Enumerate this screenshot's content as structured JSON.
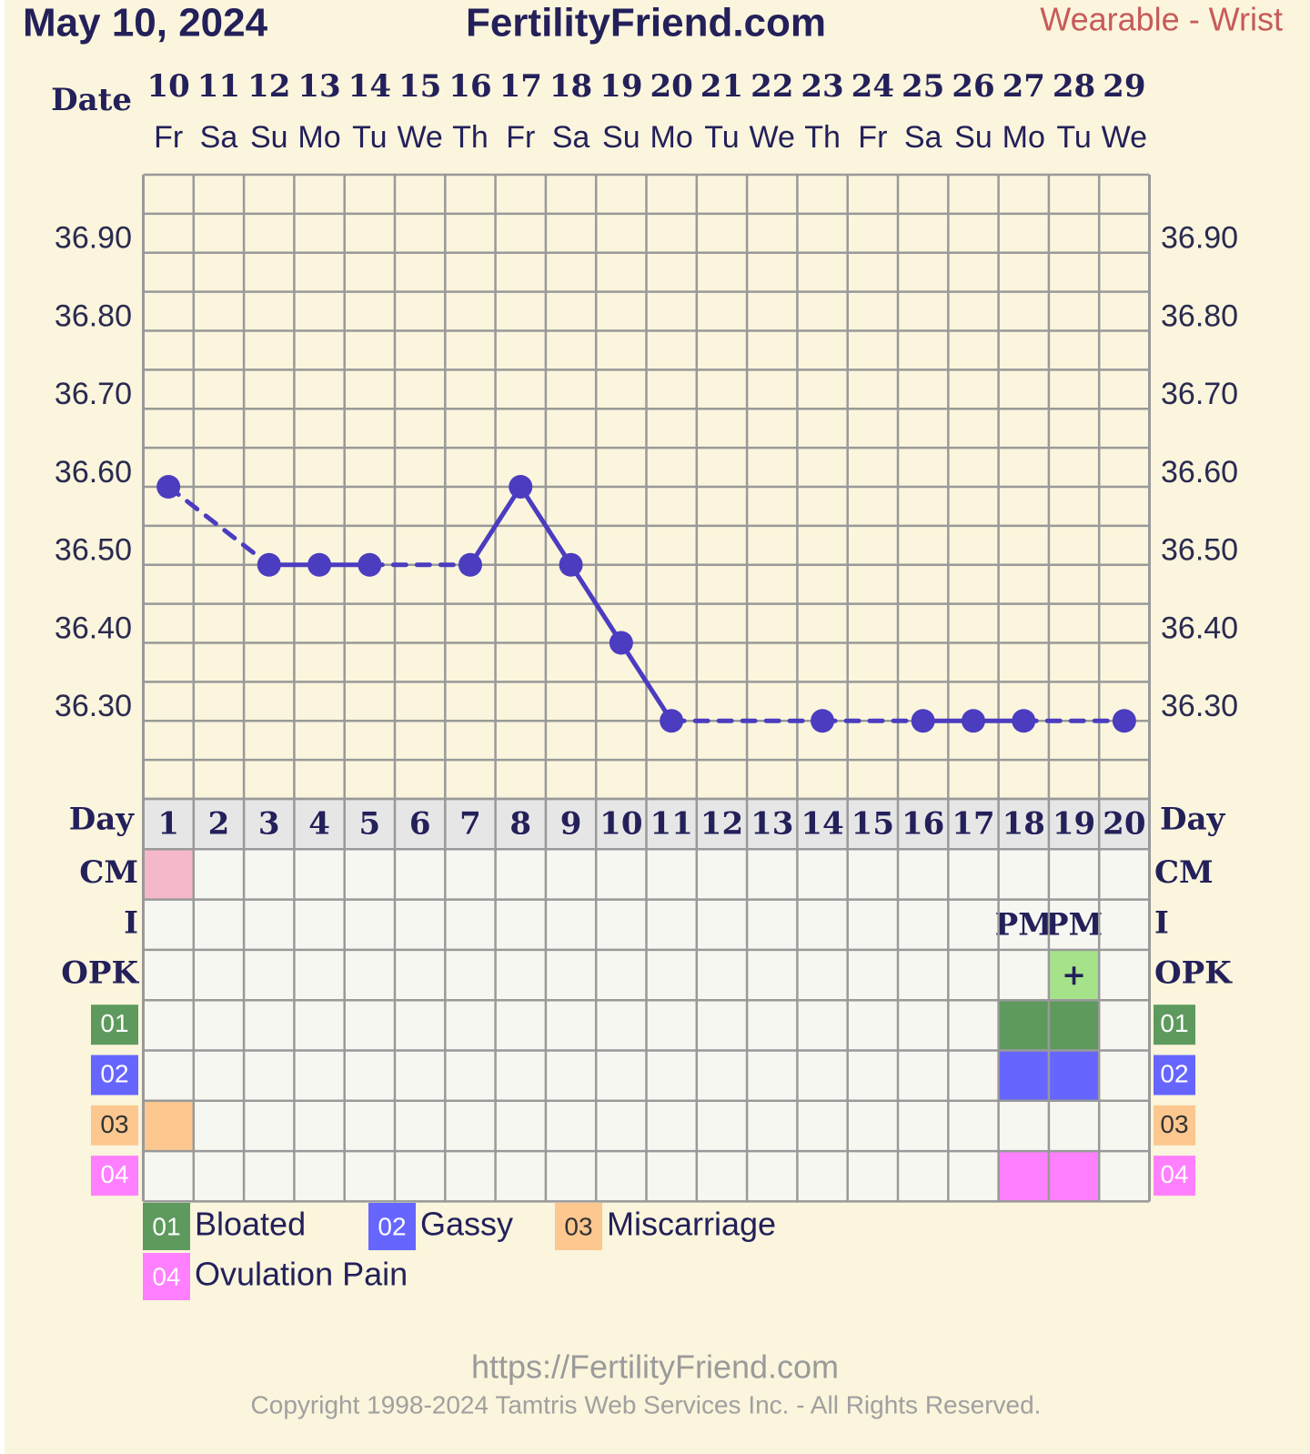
{
  "header": {
    "date": "May 10, 2024",
    "site": "FertilityFriend.com",
    "mode": "Wearable - Wrist"
  },
  "chart_data": {
    "type": "line",
    "date_label": "Date",
    "dates": [
      "10",
      "11",
      "12",
      "13",
      "14",
      "15",
      "16",
      "17",
      "18",
      "19",
      "20",
      "21",
      "22",
      "23",
      "24",
      "25",
      "26",
      "27",
      "28",
      "29"
    ],
    "weekdays": [
      "Fr",
      "Sa",
      "Su",
      "Mo",
      "Tu",
      "We",
      "Th",
      "Fr",
      "Sa",
      "Su",
      "Mo",
      "Tu",
      "We",
      "Th",
      "Fr",
      "Sa",
      "Su",
      "Mo",
      "Tu",
      "We"
    ],
    "day_label": "Day",
    "categories": [
      1,
      2,
      3,
      4,
      5,
      6,
      7,
      8,
      9,
      10,
      11,
      12,
      13,
      14,
      15,
      16,
      17,
      18,
      19,
      20
    ],
    "values": [
      36.6,
      null,
      36.5,
      36.5,
      36.5,
      null,
      36.5,
      36.6,
      36.5,
      36.4,
      36.3,
      null,
      null,
      36.3,
      null,
      36.3,
      36.3,
      36.3,
      null,
      36.3
    ],
    "color": "#4b3cc0",
    "ylim": [
      36.2,
      37.0
    ],
    "yticks": [
      {
        "value": 36.3,
        "label": "36.30"
      },
      {
        "value": 36.4,
        "label": "36.40"
      },
      {
        "value": 36.5,
        "label": "36.50"
      },
      {
        "value": 36.6,
        "label": "36.60"
      },
      {
        "value": 36.7,
        "label": "36.70"
      },
      {
        "value": 36.8,
        "label": "36.80"
      },
      {
        "value": 36.9,
        "label": "36.90"
      }
    ],
    "grid": true
  },
  "table": {
    "rows": [
      {
        "label": "CM",
        "cells": [
          {
            "color": "#f4b8c8"
          },
          null,
          null,
          null,
          null,
          null,
          null,
          null,
          null,
          null,
          null,
          null,
          null,
          null,
          null,
          null,
          null,
          null,
          null,
          null
        ]
      },
      {
        "label": "I",
        "cells": [
          null,
          null,
          null,
          null,
          null,
          null,
          null,
          null,
          null,
          null,
          null,
          null,
          null,
          null,
          null,
          null,
          null,
          {
            "text": "PM"
          },
          {
            "text": "PM"
          },
          null
        ]
      },
      {
        "label": "OPK",
        "cells": [
          null,
          null,
          null,
          null,
          null,
          null,
          null,
          null,
          null,
          null,
          null,
          null,
          null,
          null,
          null,
          null,
          null,
          null,
          {
            "text": "+",
            "color": "#a6e28a"
          },
          null
        ]
      },
      {
        "label": "01",
        "name": "Bloated",
        "color": "#5e9a5e",
        "cells": [
          null,
          null,
          null,
          null,
          null,
          null,
          null,
          null,
          null,
          null,
          null,
          null,
          null,
          null,
          null,
          null,
          null,
          true,
          true,
          null
        ]
      },
      {
        "label": "02",
        "name": "Gassy",
        "color": "#6666ff",
        "cells": [
          null,
          null,
          null,
          null,
          null,
          null,
          null,
          null,
          null,
          null,
          null,
          null,
          null,
          null,
          null,
          null,
          null,
          true,
          true,
          null
        ]
      },
      {
        "label": "03",
        "name": "Miscarriage",
        "color": "#fcc890",
        "cells": [
          true,
          null,
          null,
          null,
          null,
          null,
          null,
          null,
          null,
          null,
          null,
          null,
          null,
          null,
          null,
          null,
          null,
          null,
          null,
          null
        ]
      },
      {
        "label": "04",
        "name": "Ovulation Pain",
        "color": "#ff80ff",
        "cells": [
          null,
          null,
          null,
          null,
          null,
          null,
          null,
          null,
          null,
          null,
          null,
          null,
          null,
          null,
          null,
          null,
          null,
          true,
          true,
          null
        ]
      }
    ]
  },
  "footer": {
    "url": "https://FertilityFriend.com",
    "copyright": "Copyright 1998-2024 Tamtris Web Services Inc. - All Rights Reserved."
  }
}
